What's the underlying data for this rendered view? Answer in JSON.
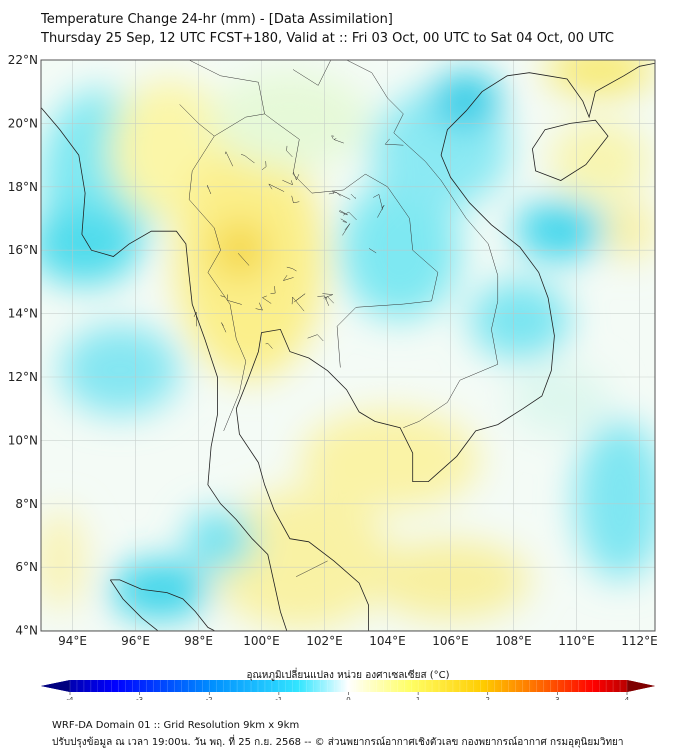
{
  "header": {
    "title": "Temperature Change 24-hr (mm) - [Data Assimilation]",
    "subtitle": "Thursday 25 Sep, 12 UTC FCST+180, Valid at :: Fri 03 Oct, 00 UTC to Sat 04 Oct, 00 UTC"
  },
  "map": {
    "lon_labels": [
      "94°E",
      "96°E",
      "98°E",
      "100°E",
      "102°E",
      "104°E",
      "106°E",
      "108°E",
      "110°E",
      "112°E"
    ],
    "lat_labels": [
      "22°N",
      "20°N",
      "18°N",
      "16°N",
      "14°N",
      "12°N",
      "10°N",
      "8°N",
      "6°N",
      "4°N"
    ],
    "extent_lon": [
      93,
      112.5
    ],
    "extent_lat": [
      4,
      22
    ]
  },
  "colorbar": {
    "label": "อุณหภูมิเปลี่ยนแปลง หน่วย องศาเซลเซียส (°C)",
    "ticks": [
      "-4",
      "-3",
      "-2",
      "-1",
      "0",
      "1",
      "2",
      "3",
      "4"
    ],
    "range": [
      -4,
      4
    ],
    "colors": [
      "#00007f",
      "#0000ff",
      "#0080ff",
      "#33e6ff",
      "#ffffff",
      "#ffff66",
      "#ffcc00",
      "#ff8000",
      "#ff0000",
      "#7f0000"
    ]
  },
  "footer": {
    "line1": "WRF-DA Domain 01 :: Grid Resolution 9km x 9km",
    "line2": "ปรับปรุงข้อมูล ณ เวลา 19:00น. วัน พฤ. ที่ 25 ก.ย. 2568 -- © ส่วนพยากรณ์อากาศเชิงตัวเลข กองพยากรณ์อากาศ กรมอุตุนิยมวิทยา"
  }
}
